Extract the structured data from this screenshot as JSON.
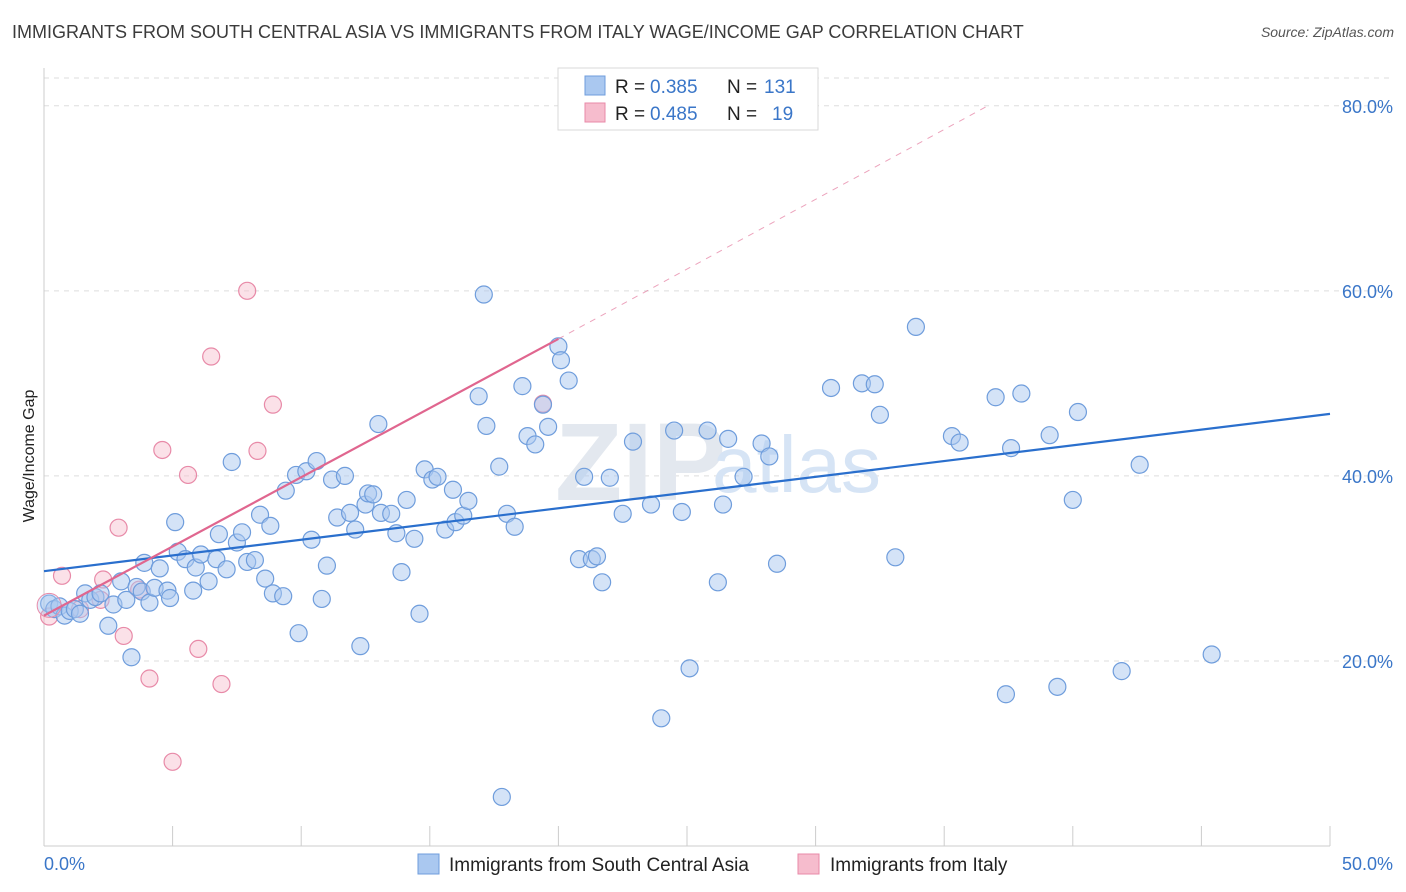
{
  "title": "IMMIGRANTS FROM SOUTH CENTRAL ASIA VS IMMIGRANTS FROM ITALY WAGE/INCOME GAP CORRELATION CHART",
  "source": "Source: ZipAtlas.com",
  "watermark": {
    "zip": "ZIP",
    "atlas": "atlas"
  },
  "colors": {
    "blue_fill": "#aac8f0",
    "blue_stroke": "#6f9ddc",
    "blue_line": "#2a6fcd",
    "pink_fill": "#f6bccd",
    "pink_stroke": "#e88aa8",
    "pink_line": "#e0668f",
    "axis_label": "#3a76c8",
    "grid": "#dddddd"
  },
  "legend_top": [
    {
      "r_label": "R =",
      "r_value": "0.385",
      "n_label": "N =",
      "n_value": "131"
    },
    {
      "r_label": "R =",
      "r_value": "0.485",
      "n_label": "N =",
      "n_value": "19"
    }
  ],
  "chart_data": {
    "type": "scatter",
    "title": "IMMIGRANTS FROM SOUTH CENTRAL ASIA VS IMMIGRANTS FROM ITALY WAGE/INCOME GAP CORRELATION CHART",
    "xlabel": "",
    "ylabel": "Wage/Income Gap",
    "xlim": [
      0,
      50
    ],
    "ylim": [
      0,
      83
    ],
    "x_tick_labels": [
      "0.0%",
      "50.0%"
    ],
    "y_ticks": [
      20,
      40,
      60,
      80
    ],
    "y_tick_labels": [
      "20.0%",
      "40.0%",
      "60.0%",
      "80.0%"
    ],
    "grid": true,
    "legend_position": "bottom",
    "series": [
      {
        "name": "Immigrants from South Central Asia",
        "trend": {
          "x": [
            0,
            50
          ],
          "y": [
            29.7,
            46.7
          ]
        },
        "points": [
          [
            0.2,
            26.2
          ],
          [
            0.4,
            25.6
          ],
          [
            0.6,
            25.9
          ],
          [
            0.8,
            24.9
          ],
          [
            1.0,
            25.4
          ],
          [
            1.2,
            25.6
          ],
          [
            1.4,
            25.1
          ],
          [
            1.6,
            27.3
          ],
          [
            1.8,
            26.6
          ],
          [
            2.0,
            26.9
          ],
          [
            2.2,
            27.3
          ],
          [
            2.5,
            23.8
          ],
          [
            2.7,
            26.1
          ],
          [
            3.0,
            28.6
          ],
          [
            3.2,
            26.6
          ],
          [
            3.4,
            20.4
          ],
          [
            3.6,
            28.0
          ],
          [
            3.8,
            27.5
          ],
          [
            3.9,
            30.6
          ],
          [
            4.1,
            26.3
          ],
          [
            4.3,
            27.9
          ],
          [
            4.5,
            30.0
          ],
          [
            4.8,
            27.6
          ],
          [
            4.9,
            26.8
          ],
          [
            5.1,
            35.0
          ],
          [
            5.2,
            31.8
          ],
          [
            5.5,
            31.0
          ],
          [
            5.8,
            27.6
          ],
          [
            5.9,
            30.1
          ],
          [
            6.1,
            31.5
          ],
          [
            6.4,
            28.6
          ],
          [
            6.7,
            31.0
          ],
          [
            6.8,
            33.7
          ],
          [
            7.1,
            29.9
          ],
          [
            7.3,
            41.5
          ],
          [
            7.5,
            32.8
          ],
          [
            7.7,
            33.9
          ],
          [
            7.9,
            30.7
          ],
          [
            8.2,
            30.9
          ],
          [
            8.4,
            35.8
          ],
          [
            8.6,
            28.9
          ],
          [
            8.8,
            34.6
          ],
          [
            8.9,
            27.3
          ],
          [
            9.3,
            27.0
          ],
          [
            9.4,
            38.4
          ],
          [
            9.8,
            40.1
          ],
          [
            9.9,
            23.0
          ],
          [
            10.2,
            40.5
          ],
          [
            10.4,
            33.1
          ],
          [
            10.6,
            41.6
          ],
          [
            10.8,
            26.7
          ],
          [
            11.0,
            30.3
          ],
          [
            11.2,
            39.6
          ],
          [
            11.4,
            35.5
          ],
          [
            11.7,
            40.0
          ],
          [
            11.9,
            36.0
          ],
          [
            12.1,
            34.2
          ],
          [
            12.3,
            21.6
          ],
          [
            12.5,
            36.9
          ],
          [
            12.6,
            38.1
          ],
          [
            12.8,
            38.0
          ],
          [
            13.0,
            45.6
          ],
          [
            13.1,
            36.0
          ],
          [
            13.5,
            35.9
          ],
          [
            13.7,
            33.8
          ],
          [
            13.9,
            29.6
          ],
          [
            14.1,
            37.4
          ],
          [
            14.4,
            33.2
          ],
          [
            14.6,
            25.1
          ],
          [
            14.8,
            40.7
          ],
          [
            15.1,
            39.6
          ],
          [
            15.3,
            39.9
          ],
          [
            15.6,
            34.2
          ],
          [
            15.9,
            38.5
          ],
          [
            16.0,
            35.0
          ],
          [
            16.3,
            35.7
          ],
          [
            16.5,
            37.3
          ],
          [
            16.9,
            48.6
          ],
          [
            17.1,
            59.6
          ],
          [
            17.2,
            45.4
          ],
          [
            17.7,
            41.0
          ],
          [
            17.8,
            5.3
          ],
          [
            18.0,
            35.9
          ],
          [
            18.3,
            34.5
          ],
          [
            18.6,
            49.7
          ],
          [
            18.8,
            44.3
          ],
          [
            19.1,
            43.4
          ],
          [
            19.4,
            47.7
          ],
          [
            19.6,
            45.3
          ],
          [
            20.0,
            54.0
          ],
          [
            20.1,
            52.5
          ],
          [
            20.4,
            50.3
          ],
          [
            20.8,
            31.0
          ],
          [
            21.0,
            39.9
          ],
          [
            21.3,
            31.0
          ],
          [
            21.5,
            31.3
          ],
          [
            21.7,
            28.5
          ],
          [
            22.0,
            39.8
          ],
          [
            22.5,
            35.9
          ],
          [
            22.9,
            43.7
          ],
          [
            23.6,
            36.9
          ],
          [
            24.0,
            13.8
          ],
          [
            24.5,
            44.9
          ],
          [
            24.8,
            36.1
          ],
          [
            25.1,
            19.2
          ],
          [
            25.8,
            44.9
          ],
          [
            26.2,
            28.5
          ],
          [
            26.4,
            36.9
          ],
          [
            26.6,
            44.0
          ],
          [
            27.2,
            39.9
          ],
          [
            27.9,
            43.5
          ],
          [
            28.2,
            42.1
          ],
          [
            28.5,
            30.5
          ],
          [
            30.6,
            49.5
          ],
          [
            31.8,
            50.0
          ],
          [
            32.3,
            49.9
          ],
          [
            32.5,
            46.6
          ],
          [
            33.1,
            31.2
          ],
          [
            33.9,
            56.1
          ],
          [
            35.3,
            44.3
          ],
          [
            35.6,
            43.6
          ],
          [
            37.0,
            48.5
          ],
          [
            37.4,
            16.4
          ],
          [
            37.6,
            43.0
          ],
          [
            38.0,
            48.9
          ],
          [
            39.1,
            44.4
          ],
          [
            39.4,
            17.2
          ],
          [
            40.0,
            37.4
          ],
          [
            40.2,
            46.9
          ],
          [
            41.9,
            18.9
          ],
          [
            42.6,
            41.2
          ],
          [
            45.4,
            20.7
          ]
        ]
      },
      {
        "name": "Immigrants from Italy",
        "trend": {
          "x": [
            0,
            20
          ],
          "y": [
            24.9,
            54.8
          ]
        },
        "trend_extended": {
          "x": [
            20,
            36.7
          ],
          "y": [
            54.8,
            80.0
          ]
        },
        "points": [
          [
            0.2,
            24.8
          ],
          [
            0.7,
            29.2
          ],
          [
            1.4,
            25.6
          ],
          [
            2.2,
            26.6
          ],
          [
            2.3,
            28.8
          ],
          [
            2.9,
            34.4
          ],
          [
            3.1,
            22.7
          ],
          [
            3.7,
            27.7
          ],
          [
            4.1,
            18.1
          ],
          [
            4.6,
            42.8
          ],
          [
            5.0,
            9.1
          ],
          [
            5.6,
            40.1
          ],
          [
            6.0,
            21.3
          ],
          [
            6.5,
            52.9
          ],
          [
            6.9,
            17.5
          ],
          [
            7.9,
            60.0
          ],
          [
            8.3,
            42.7
          ],
          [
            8.9,
            47.7
          ],
          [
            19.4,
            47.8
          ]
        ]
      }
    ]
  }
}
